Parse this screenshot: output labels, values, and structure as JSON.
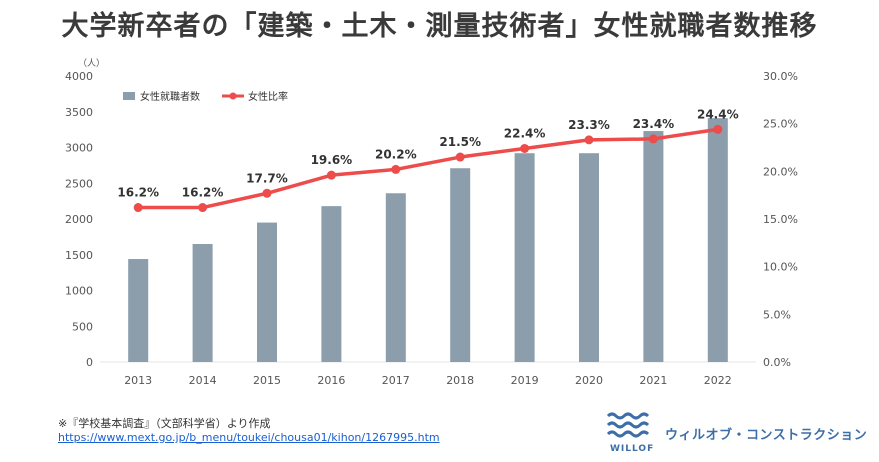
{
  "page": {
    "title": "大学新卒者の「建築・土木・測量技術者」女性就職者数推移",
    "source_note": "※『学校基本調査』（文部科学省）より作成",
    "source_url": "https://www.mext.go.jp/b_menu/toukei/chousa01/kihon/1267995.htm",
    "company": "ウィルオブ・コンストラクション",
    "logo_word": "WILLOF"
  },
  "colors": {
    "bar": "#8c9dab",
    "line": "#ee4b4b",
    "axis_text": "#555555",
    "grid": "#e4e4e4"
  },
  "chart_data": {
    "type": "bar+line",
    "title": "大学新卒者の「建築・土木・測量技術者」女性就職者数推移",
    "categories": [
      "2013",
      "2014",
      "2015",
      "2016",
      "2017",
      "2018",
      "2019",
      "2020",
      "2021",
      "2022"
    ],
    "series": [
      {
        "name": "女性就職者数",
        "type": "bar",
        "axis": "left",
        "values": [
          1440,
          1650,
          1950,
          2180,
          2360,
          2710,
          2920,
          2920,
          3230,
          3410
        ]
      },
      {
        "name": "女性比率",
        "type": "line",
        "axis": "right",
        "values": [
          16.2,
          16.2,
          17.7,
          19.6,
          20.2,
          21.5,
          22.4,
          23.3,
          23.4,
          24.4
        ],
        "labels": [
          "16.2%",
          "16.2%",
          "17.7%",
          "19.6%",
          "20.2%",
          "21.5%",
          "22.4%",
          "23.3%",
          "23.4%",
          "24.4%"
        ]
      }
    ],
    "left_axis": {
      "unit": "（人）",
      "ylim": [
        0,
        4000
      ],
      "ticks": [
        "0",
        "500",
        "1000",
        "1500",
        "2000",
        "2500",
        "3000",
        "3500",
        "4000"
      ]
    },
    "right_axis": {
      "ylim": [
        0,
        30
      ],
      "ticks": [
        "0.0%",
        "5.0%",
        "10.0%",
        "15.0%",
        "20.0%",
        "25.0%",
        "30.0%"
      ]
    },
    "legend": {
      "position": "top-left",
      "bar_label": "女性就職者数",
      "line_label": "女性比率"
    },
    "grid": false
  }
}
